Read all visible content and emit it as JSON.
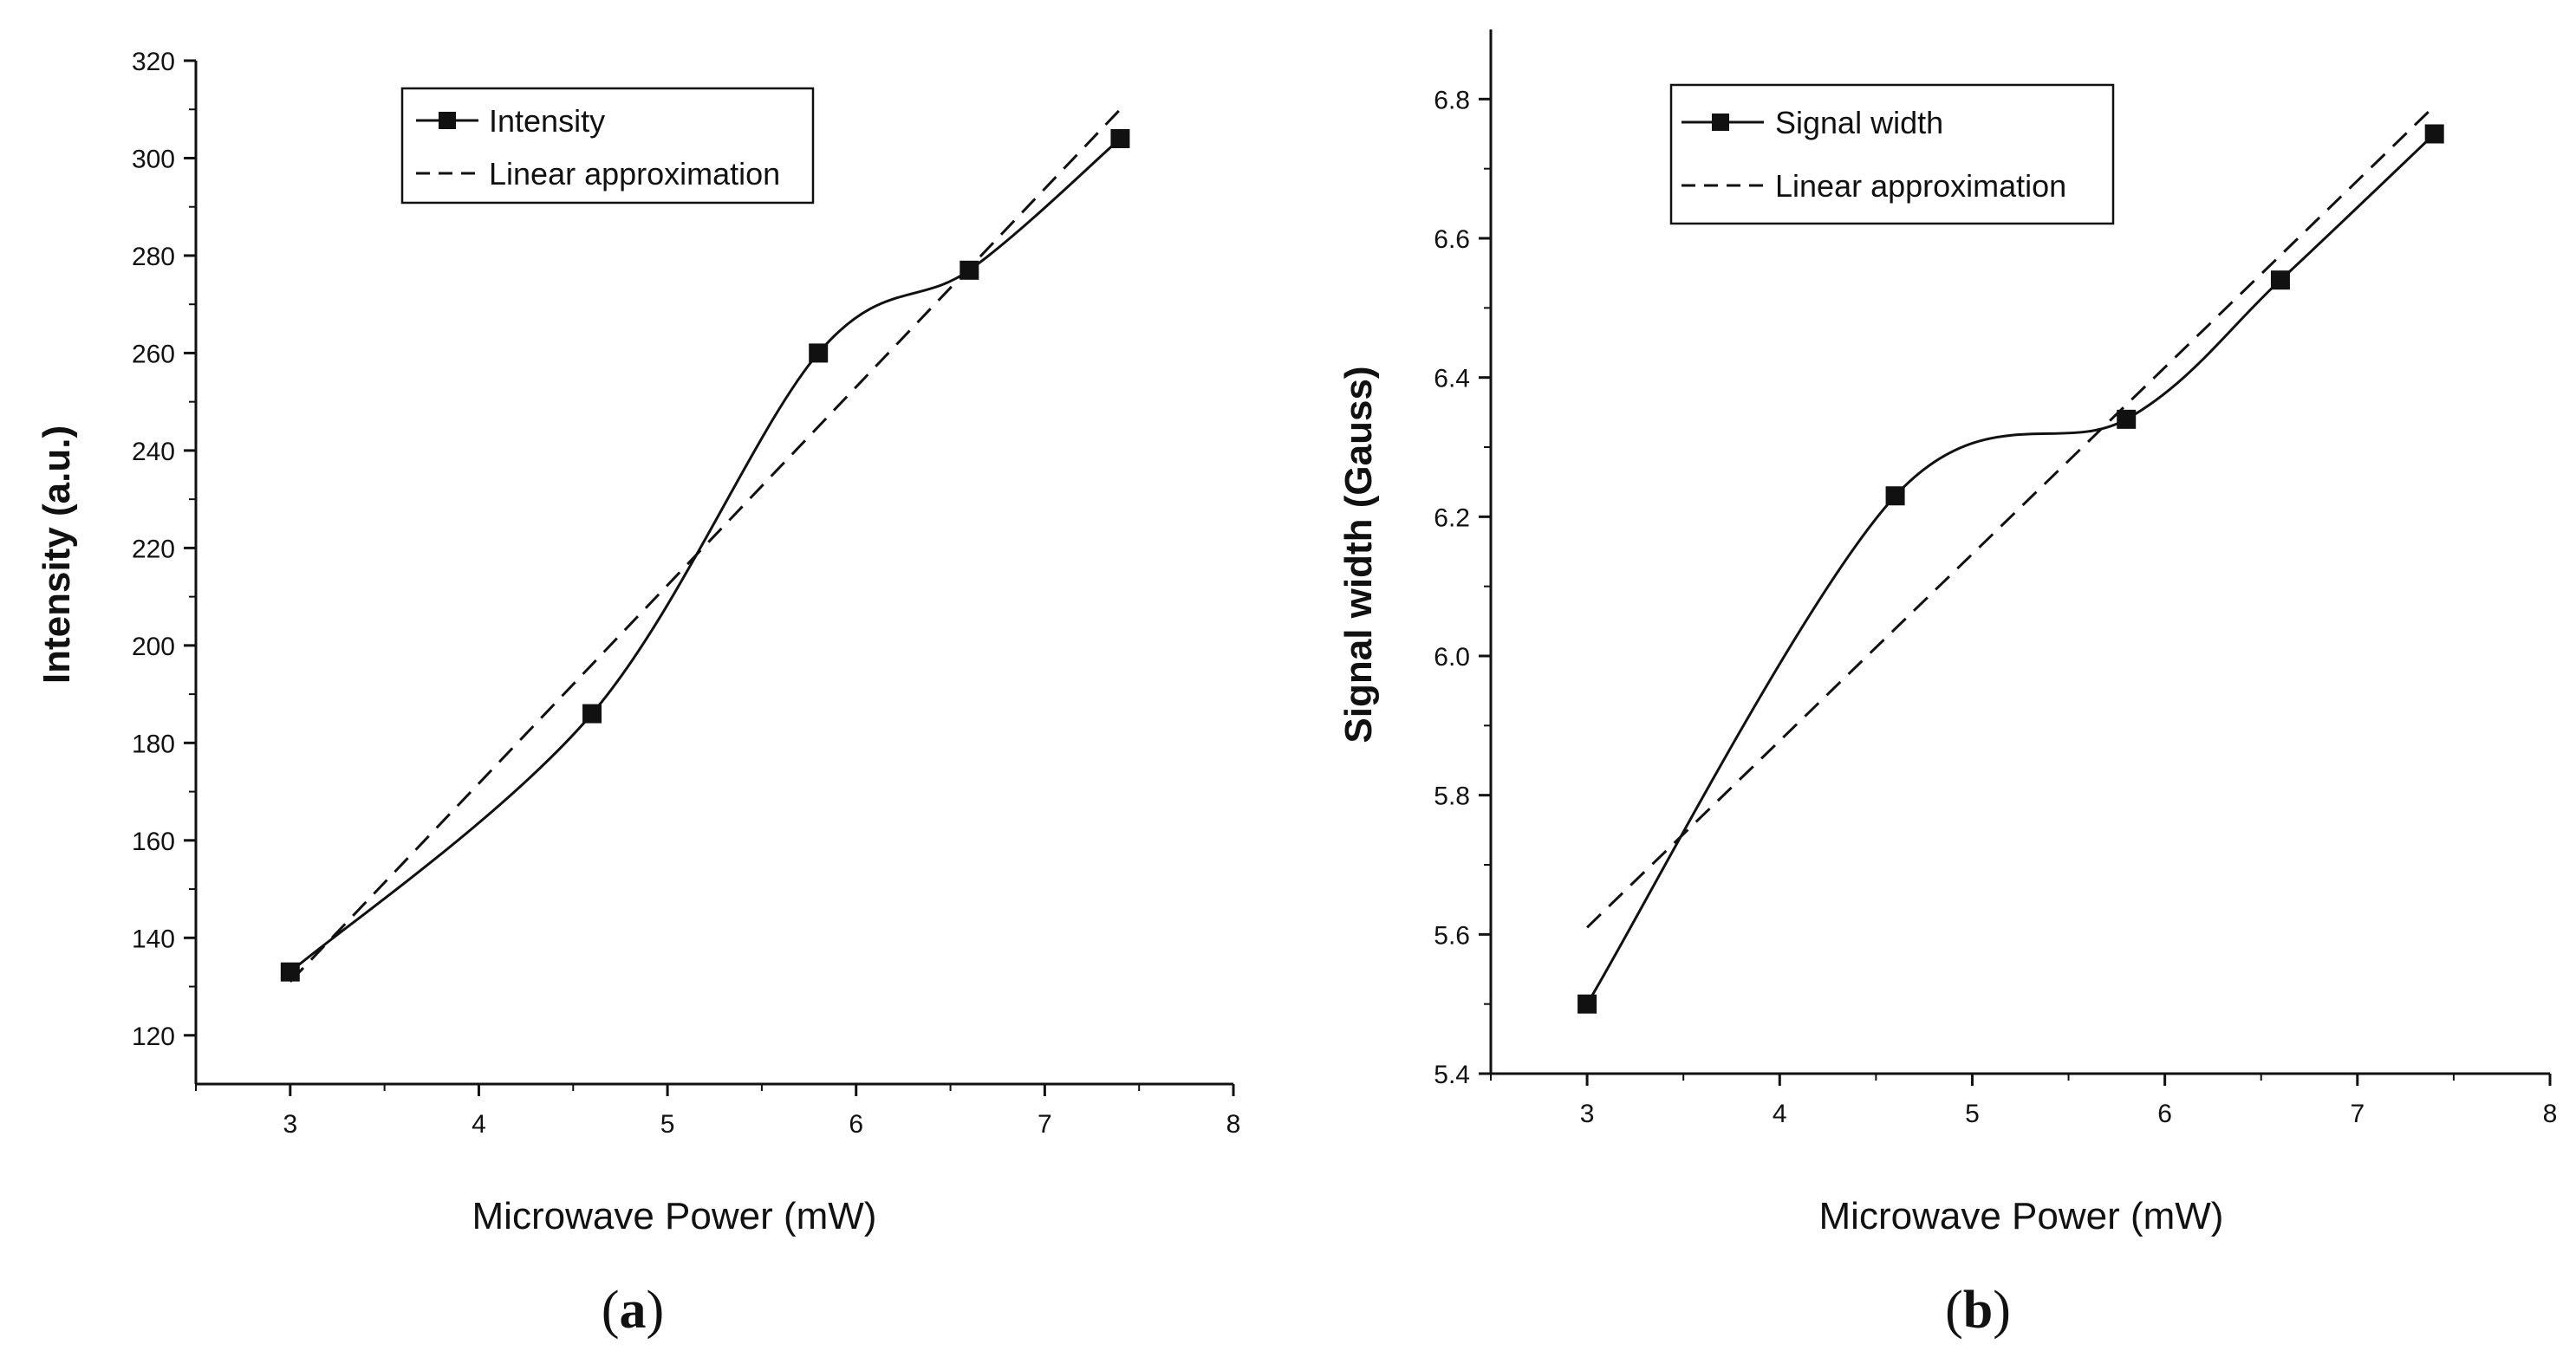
{
  "chart_data": [
    {
      "type": "line",
      "panel": "a",
      "xlabel": "Microwave Power (mW)",
      "ylabel": "Intensity (a.u.)",
      "xlim": [
        2.5,
        8
      ],
      "ylim": [
        110,
        320
      ],
      "xticks": [
        3,
        4,
        5,
        6,
        7,
        8
      ],
      "yticks": [
        120,
        140,
        160,
        180,
        200,
        220,
        240,
        260,
        280,
        300,
        320
      ],
      "legend_position": "top",
      "series": [
        {
          "name": "Intensity",
          "style": "solid-square-markers",
          "x": [
            3,
            4.6,
            5.8,
            6.6,
            7.4
          ],
          "y": [
            133,
            186,
            260,
            277,
            304
          ]
        },
        {
          "name": "Linear approximation",
          "style": "dashed",
          "x": [
            3,
            7.4
          ],
          "y": [
            131,
            310
          ]
        }
      ]
    },
    {
      "type": "line",
      "panel": "b",
      "xlabel": "Microwave Power (mW)",
      "ylabel": "Signal width (Gauss)",
      "xlim": [
        2.5,
        8
      ],
      "ylim": [
        5.4,
        6.9
      ],
      "xticks": [
        3,
        4,
        5,
        6,
        7,
        8
      ],
      "yticks": [
        5.4,
        5.6,
        5.8,
        6.0,
        6.2,
        6.4,
        6.6,
        6.8
      ],
      "legend_position": "top",
      "series": [
        {
          "name": "Signal width",
          "style": "solid-square-markers",
          "x": [
            3,
            4.6,
            5.8,
            6.6,
            7.4
          ],
          "y": [
            5.5,
            6.23,
            6.34,
            6.54,
            6.75
          ]
        },
        {
          "name": "Linear approximation",
          "style": "dashed",
          "x": [
            3,
            7.4
          ],
          "y": [
            5.61,
            6.79
          ]
        }
      ]
    }
  ],
  "panel_labels": {
    "a": {
      "open": "(",
      "letter": "a",
      "close": ")"
    },
    "b": {
      "open": "(",
      "letter": "b",
      "close": ")"
    }
  }
}
